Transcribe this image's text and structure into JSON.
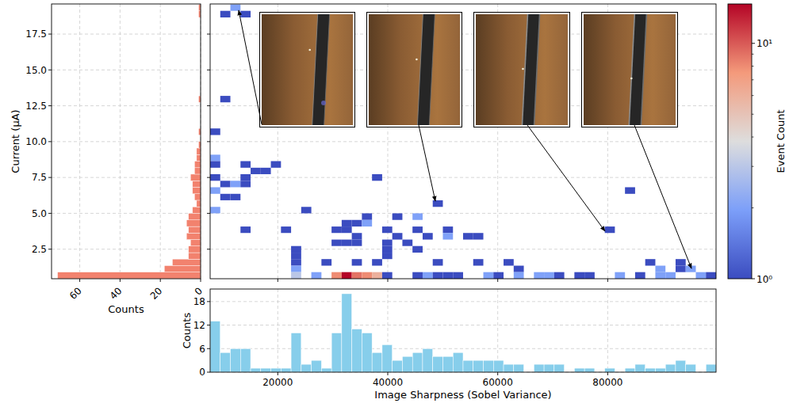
{
  "chart_data": [
    {
      "type": "heatmap",
      "xlim": [
        7700,
        99700
      ],
      "ylim": [
        0.44,
        19.6
      ],
      "xticks": [
        20000,
        40000,
        60000,
        80000
      ],
      "yticks": [
        2.5,
        {
          "value": 5,
          "label": "5.0"
        },
        7.5,
        {
          "value": 10,
          "label": "10.0"
        },
        12.5,
        {
          "value": 15,
          "label": "15.0"
        },
        17.5
      ],
      "grid": true,
      "tick_labels": false,
      "colorbar_label": "Event Count",
      "colorbar_range": [
        1,
        14.7
      ],
      "colorbar_ticks": [
        {
          "value": 1,
          "label": "10⁰"
        },
        {
          "value": 10,
          "label": "10¹"
        }
      ],
      "cells": [
        [
          11380,
          19.12,
          2
        ],
        [
          9540,
          18.66,
          1
        ],
        [
          13220,
          18.66,
          1
        ],
        [
          9540,
          12.74,
          1
        ],
        [
          7700,
          10.46,
          1
        ],
        [
          7700,
          8.64,
          2
        ],
        [
          7700,
          8.18,
          1
        ],
        [
          7700,
          7.27,
          1
        ],
        [
          7700,
          6.36,
          2
        ],
        [
          7700,
          5.0,
          2
        ],
        [
          9540,
          6.82,
          1
        ],
        [
          9540,
          5.91,
          1
        ],
        [
          11380,
          6.82,
          2
        ],
        [
          11380,
          5.91,
          1
        ],
        [
          13220,
          8.18,
          1
        ],
        [
          13220,
          7.27,
          1
        ],
        [
          13220,
          6.82,
          1
        ],
        [
          15060,
          7.73,
          1
        ],
        [
          16900,
          7.73,
          1
        ],
        [
          18740,
          8.18,
          1
        ],
        [
          13220,
          3.63,
          1
        ],
        [
          20580,
          3.63,
          1
        ],
        [
          24260,
          5.0,
          1
        ],
        [
          37140,
          7.27,
          1
        ],
        [
          83140,
          6.36,
          1
        ],
        [
          79460,
          3.63,
          1
        ],
        [
          48180,
          5.45,
          1
        ],
        [
          35300,
          4.54,
          1
        ],
        [
          31620,
          4.08,
          1
        ],
        [
          33460,
          4.08,
          1
        ],
        [
          35300,
          4.08,
          2
        ],
        [
          40820,
          4.54,
          1
        ],
        [
          44500,
          4.54,
          2
        ],
        [
          29780,
          3.63,
          1
        ],
        [
          31620,
          3.63,
          1
        ],
        [
          38980,
          3.63,
          1
        ],
        [
          44500,
          3.63,
          1
        ],
        [
          50020,
          3.63,
          1
        ],
        [
          33460,
          3.17,
          1
        ],
        [
          40820,
          3.17,
          1
        ],
        [
          46340,
          3.17,
          1
        ],
        [
          50020,
          3.17,
          2
        ],
        [
          53700,
          3.17,
          1
        ],
        [
          55540,
          3.17,
          1
        ],
        [
          29780,
          2.72,
          1
        ],
        [
          31620,
          2.72,
          1
        ],
        [
          33460,
          2.72,
          1
        ],
        [
          38980,
          2.72,
          1
        ],
        [
          38980,
          2.26,
          1
        ],
        [
          38980,
          1.81,
          1
        ],
        [
          42660,
          2.72,
          1
        ],
        [
          44500,
          2.26,
          1
        ],
        [
          55540,
          1.35,
          1
        ],
        [
          22420,
          2.26,
          1
        ],
        [
          22420,
          1.81,
          1
        ],
        [
          22420,
          1.35,
          1
        ],
        [
          22420,
          0.9,
          2
        ],
        [
          27940,
          1.35,
          1
        ],
        [
          33460,
          1.35,
          1
        ],
        [
          37140,
          1.35,
          1
        ],
        [
          48180,
          1.35,
          1
        ],
        [
          61060,
          1.35,
          1
        ],
        [
          62900,
          0.9,
          1
        ],
        [
          86820,
          1.35,
          1
        ],
        [
          88660,
          0.9,
          2
        ],
        [
          92340,
          1.35,
          1
        ],
        [
          92340,
          0.9,
          1
        ],
        [
          94180,
          0.9,
          2
        ],
        [
          22420,
          0.44,
          3
        ],
        [
          26100,
          0.44,
          2
        ],
        [
          29780,
          0.44,
          8
        ],
        [
          31620,
          0.44,
          15
        ],
        [
          33460,
          0.44,
          9
        ],
        [
          35300,
          0.44,
          8
        ],
        [
          37140,
          0.44,
          6
        ],
        [
          38980,
          0.44,
          1
        ],
        [
          44500,
          0.44,
          1
        ],
        [
          46340,
          0.44,
          2
        ],
        [
          48180,
          0.44,
          1
        ],
        [
          50020,
          0.44,
          1
        ],
        [
          51860,
          0.44,
          1
        ],
        [
          57380,
          0.44,
          2
        ],
        [
          59220,
          0.44,
          1
        ],
        [
          62900,
          0.44,
          2
        ],
        [
          66580,
          0.44,
          2
        ],
        [
          68420,
          0.44,
          2
        ],
        [
          70260,
          0.44,
          1
        ],
        [
          73940,
          0.44,
          1
        ],
        [
          75780,
          0.44,
          1
        ],
        [
          81300,
          0.44,
          2
        ],
        [
          84980,
          0.44,
          1
        ],
        [
          88660,
          0.44,
          2
        ],
        [
          90500,
          0.44,
          2
        ],
        [
          96020,
          0.44,
          2
        ],
        [
          97860,
          0.44,
          1
        ]
      ]
    },
    {
      "type": "histogram",
      "orientation": "horizontal",
      "x_label": "Counts",
      "y_label": "Current (μA)",
      "color": "#f2826e",
      "grid": true,
      "xlim": [
        74,
        0
      ],
      "xticks": [
        60,
        40,
        20,
        0
      ],
      "ylim": [
        0.44,
        19.6
      ],
      "yticks": [
        2.5,
        {
          "value": 5,
          "label": "5.0"
        },
        7.5,
        {
          "value": 10,
          "label": "10.0"
        },
        12.5,
        {
          "value": 15,
          "label": "15.0"
        },
        17.5
      ],
      "bins": [
        0.44,
        0.9,
        1.35,
        1.81,
        2.26,
        2.72,
        3.17,
        3.63,
        4.08,
        4.54,
        5.0,
        5.45,
        5.91,
        6.36,
        6.82,
        7.27,
        7.73,
        8.18,
        8.64,
        9.09,
        9.55,
        10.01,
        10.46,
        10.92,
        11.37,
        11.83,
        12.28,
        12.74,
        13.19,
        13.65,
        14.11,
        14.56,
        15.02,
        15.47,
        15.93,
        16.38,
        16.84,
        17.29,
        17.75,
        18.2,
        18.66,
        19.12,
        19.57
      ],
      "values": [
        71,
        18,
        14,
        6,
        6,
        5,
        7,
        6,
        7,
        6,
        4,
        2,
        3,
        4,
        4,
        5,
        3,
        3,
        2,
        2,
        1,
        0,
        1,
        0,
        0,
        0,
        0,
        1,
        0,
        0,
        0,
        0,
        0,
        0,
        0,
        0,
        0,
        0,
        0,
        0,
        1,
        1
      ]
    },
    {
      "type": "histogram",
      "x_label": "Image Sharpness (Sobel Variance)",
      "y_label": "Counts",
      "color": "#87ceeb",
      "grid": true,
      "xlim": [
        7700,
        99700
      ],
      "xticks": [
        20000,
        40000,
        60000,
        80000
      ],
      "ylim": [
        0,
        21.2
      ],
      "yticks": [
        0,
        6,
        12,
        18
      ],
      "bins": [
        7700,
        9540,
        11380,
        13220,
        15060,
        16900,
        18740,
        20580,
        22420,
        24260,
        26100,
        27940,
        29780,
        31620,
        33460,
        35300,
        37140,
        38980,
        40820,
        42660,
        44500,
        46340,
        48180,
        50020,
        51860,
        53700,
        55540,
        57380,
        59220,
        61060,
        62900,
        64740,
        66580,
        68420,
        70260,
        72100,
        73940,
        75780,
        77620,
        79460,
        81300,
        83140,
        84980,
        86820,
        88660,
        90500,
        92340,
        94180,
        96020,
        97860,
        99700
      ],
      "values": [
        13,
        5,
        6,
        6,
        1,
        1,
        1,
        1,
        10,
        2,
        3,
        1,
        10,
        20,
        11,
        10,
        5,
        7,
        3,
        4,
        5,
        6,
        4,
        4,
        5,
        3,
        3,
        3,
        3,
        2,
        2,
        0,
        2,
        2,
        2,
        0,
        1,
        1,
        0,
        1,
        0,
        1,
        2,
        1,
        1,
        2,
        3,
        2,
        0,
        2
      ]
    }
  ]
}
